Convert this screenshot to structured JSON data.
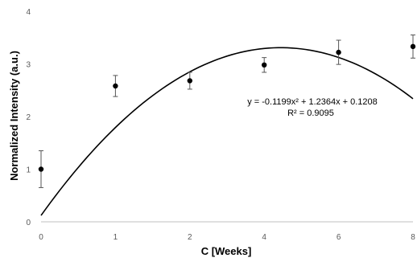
{
  "chart_data": {
    "type": "scatter",
    "xlabel": "C [Weeks]",
    "ylabel": "Normalized Intensity (a.u.)",
    "xlim": [
      0,
      8
    ],
    "ylim": [
      0,
      4
    ],
    "x_ticks": [
      "0",
      "1",
      "2",
      "4",
      "6",
      "8"
    ],
    "y_ticks": [
      "0",
      "1",
      "2",
      "3",
      "4"
    ],
    "grid": false,
    "points": [
      {
        "x_label": "0",
        "y": 1.0,
        "err": 0.35
      },
      {
        "x_label": "1",
        "y": 2.58,
        "err": 0.2
      },
      {
        "x_label": "2",
        "y": 2.68,
        "err": 0.16
      },
      {
        "x_label": "4",
        "y": 2.98,
        "err": 0.14
      },
      {
        "x_label": "6",
        "y": 3.22,
        "err": 0.23
      },
      {
        "x_label": "8",
        "y": 3.33,
        "err": 0.22
      }
    ],
    "trendline": {
      "type": "polynomial",
      "coefficients": [
        -0.1199,
        1.2364,
        0.1208
      ],
      "equation": "y = -0.1199x² + 1.2364x + 0.1208",
      "r_squared": "R² = 0.9095"
    },
    "colors": {
      "marker": "#000000",
      "trendline": "#000000",
      "axis": "#bfbfbf",
      "tick_text": "#595959"
    }
  }
}
